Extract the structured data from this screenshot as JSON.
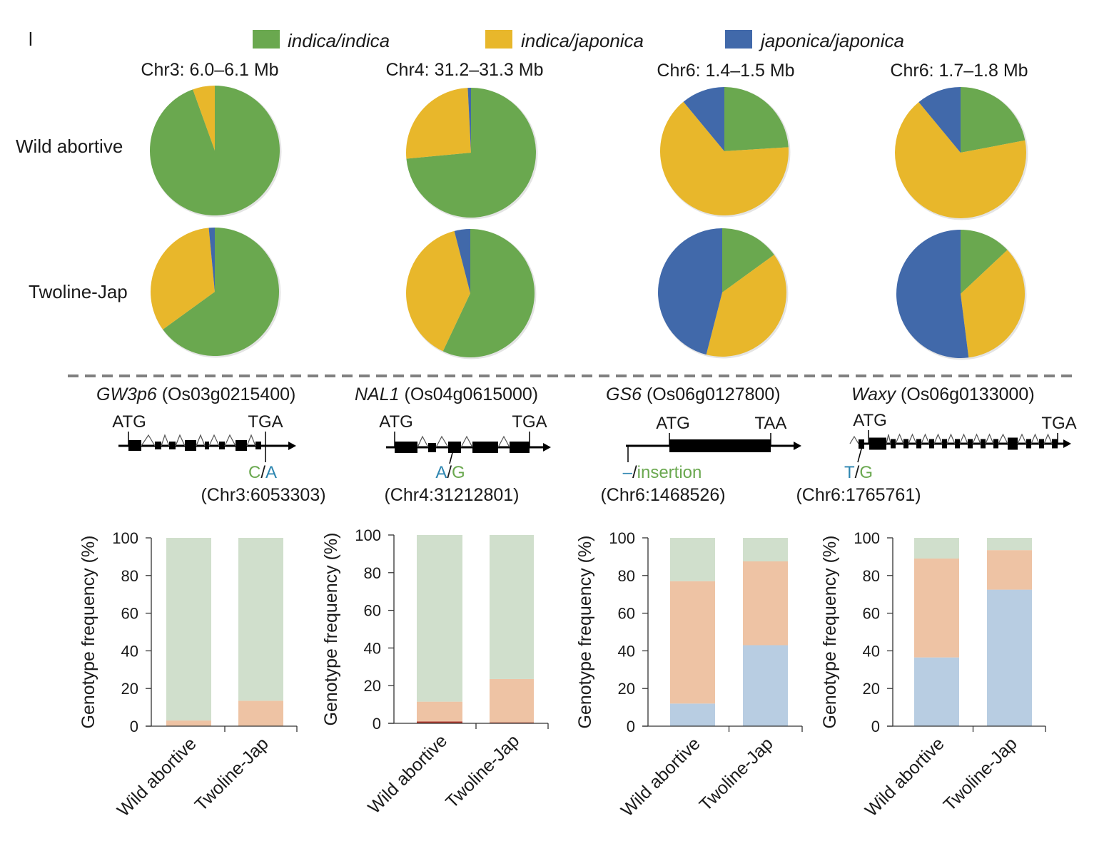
{
  "panel_letter": "l",
  "legend": [
    {
      "label": "indica/indica",
      "color": "#6aa84f"
    },
    {
      "label": "indica/japonica",
      "color": "#e8b72b"
    },
    {
      "label": "japonica/japonica",
      "color": "#4169aa"
    }
  ],
  "row_labels": [
    "Wild abortive",
    "Twoline-Jap"
  ],
  "colors": {
    "green": "#6aa84f",
    "yellow": "#e8b72b",
    "blue": "#4169aa",
    "bar_green": "#d0dfcc",
    "bar_peach": "#eec3a4",
    "bar_blue": "#b8cde2",
    "bar_red": "#b03a2e",
    "dash": "#808080"
  },
  "genes": [
    {
      "name": "GW3p6",
      "id": "(Os03g0215400)",
      "start_codon": "ATG",
      "stop_codon": "TGA",
      "allele_a": "C",
      "allele_b": "A",
      "allele_a_color": "#6aa84f",
      "allele_b_color": "#2e86b0",
      "position": "(Chr3:6053303)"
    },
    {
      "name": "NAL1",
      "id": "(Os04g0615000)",
      "start_codon": "ATG",
      "stop_codon": "TGA",
      "allele_a": "A",
      "allele_b": "G",
      "allele_a_color": "#2e86b0",
      "allele_b_color": "#6aa84f",
      "position": "(Chr4:31212801)"
    },
    {
      "name": "GS6",
      "id": "(Os06g0127800)",
      "start_codon": "ATG",
      "stop_codon": "TAA",
      "allele_a": "–",
      "allele_b": "insertion",
      "allele_a_color": "#2e86b0",
      "allele_b_color": "#6aa84f",
      "position": "(Chr6:1468526)"
    },
    {
      "name": "Waxy",
      "id": "(Os06g0133000)",
      "start_codon": "ATG",
      "stop_codon": "TGA",
      "allele_a": "T",
      "allele_b": "G",
      "allele_a_color": "#2e86b0",
      "allele_b_color": "#6aa84f",
      "position": "(Chr6:1765761)"
    }
  ],
  "chart_data": [
    {
      "type": "pie",
      "title": "Chr3: 6.0–6.1 Mb",
      "group": "Wild abortive",
      "labels": [
        "indica/indica",
        "indica/japonica",
        "japonica/japonica"
      ],
      "values": [
        94.5,
        5.5,
        0
      ]
    },
    {
      "type": "pie",
      "title": "Chr4: 31.2–31.3 Mb",
      "group": "Wild abortive",
      "labels": [
        "indica/indica",
        "indica/japonica",
        "japonica/japonica"
      ],
      "values": [
        73.5,
        25.7,
        0.8
      ]
    },
    {
      "type": "pie",
      "title": "Chr6: 1.4–1.5 Mb",
      "group": "Wild abortive",
      "labels": [
        "indica/indica",
        "indica/japonica",
        "japonica/japonica"
      ],
      "values": [
        24,
        65,
        11
      ]
    },
    {
      "type": "pie",
      "title": "Chr6: 1.7–1.8 Mb",
      "group": "Wild abortive",
      "labels": [
        "indica/indica",
        "indica/japonica",
        "japonica/japonica"
      ],
      "values": [
        22,
        67,
        11
      ]
    },
    {
      "type": "pie",
      "title": "Chr3: 6.0–6.1 Mb",
      "group": "Twoline-Jap",
      "labels": [
        "indica/indica",
        "indica/japonica",
        "japonica/japonica"
      ],
      "values": [
        65,
        33.5,
        1.5
      ]
    },
    {
      "type": "pie",
      "title": "Chr4: 31.2–31.3 Mb",
      "group": "Twoline-Jap",
      "labels": [
        "indica/indica",
        "indica/japonica",
        "japonica/japonica"
      ],
      "values": [
        57,
        39,
        4
      ]
    },
    {
      "type": "pie",
      "title": "Chr6: 1.4–1.5 Mb",
      "group": "Twoline-Jap",
      "labels": [
        "indica/indica",
        "indica/japonica",
        "japonica/japonica"
      ],
      "values": [
        15,
        39,
        46
      ]
    },
    {
      "type": "pie",
      "title": "Chr6: 1.7–1.8 Mb",
      "group": "Twoline-Jap",
      "labels": [
        "indica/indica",
        "indica/japonica",
        "japonica/japonica"
      ],
      "values": [
        13,
        35,
        52
      ]
    },
    {
      "type": "bar",
      "stacked": true,
      "gene": "GW3p6",
      "categories": [
        "Wild abortive",
        "Twoline-Jap"
      ],
      "series": [
        {
          "name": "japonica/japonica",
          "values": [
            0,
            0
          ]
        },
        {
          "name": "red",
          "values": [
            0,
            0
          ]
        },
        {
          "name": "indica/japonica",
          "values": [
            3,
            13.5
          ]
        },
        {
          "name": "indica/indica",
          "values": [
            97,
            86.5
          ]
        }
      ],
      "ylabel": "Genotype frequency (%)",
      "ylim": [
        0,
        100
      ],
      "yticks": [
        0,
        20,
        40,
        60,
        80,
        100
      ]
    },
    {
      "type": "bar",
      "stacked": true,
      "gene": "NAL1",
      "categories": [
        "Wild abortive",
        "Twoline-Jap"
      ],
      "series": [
        {
          "name": "japonica/japonica",
          "values": [
            0,
            0
          ]
        },
        {
          "name": "red",
          "values": [
            1,
            0.5
          ]
        },
        {
          "name": "indica/japonica",
          "values": [
            10.5,
            23
          ]
        },
        {
          "name": "indica/indica",
          "values": [
            88.5,
            76.5
          ]
        }
      ],
      "ylabel": "Genotype frequency (%)",
      "ylim": [
        0,
        100
      ],
      "yticks": [
        0,
        20,
        40,
        60,
        80,
        100
      ]
    },
    {
      "type": "bar",
      "stacked": true,
      "gene": "GS6",
      "categories": [
        "Wild abortive",
        "Twoline-Jap"
      ],
      "series": [
        {
          "name": "japonica/japonica",
          "values": [
            12,
            43
          ]
        },
        {
          "name": "red",
          "values": [
            0,
            0
          ]
        },
        {
          "name": "indica/japonica",
          "values": [
            65,
            44.5
          ]
        },
        {
          "name": "indica/indica",
          "values": [
            23,
            12.5
          ]
        }
      ],
      "ylabel": "Genotype frequency (%)",
      "ylim": [
        0,
        100
      ],
      "yticks": [
        0,
        20,
        40,
        60,
        80,
        100
      ]
    },
    {
      "type": "bar",
      "stacked": true,
      "gene": "Waxy",
      "categories": [
        "Wild abortive",
        "Twoline-Jap"
      ],
      "series": [
        {
          "name": "japonica/japonica",
          "values": [
            36.5,
            72.5
          ]
        },
        {
          "name": "red",
          "values": [
            0,
            0
          ]
        },
        {
          "name": "indica/japonica",
          "values": [
            52.5,
            21
          ]
        },
        {
          "name": "indica/indica",
          "values": [
            11,
            6.5
          ]
        }
      ],
      "ylabel": "Genotype frequency (%)",
      "ylim": [
        0,
        100
      ],
      "yticks": [
        0,
        20,
        40,
        60,
        80,
        100
      ]
    }
  ]
}
